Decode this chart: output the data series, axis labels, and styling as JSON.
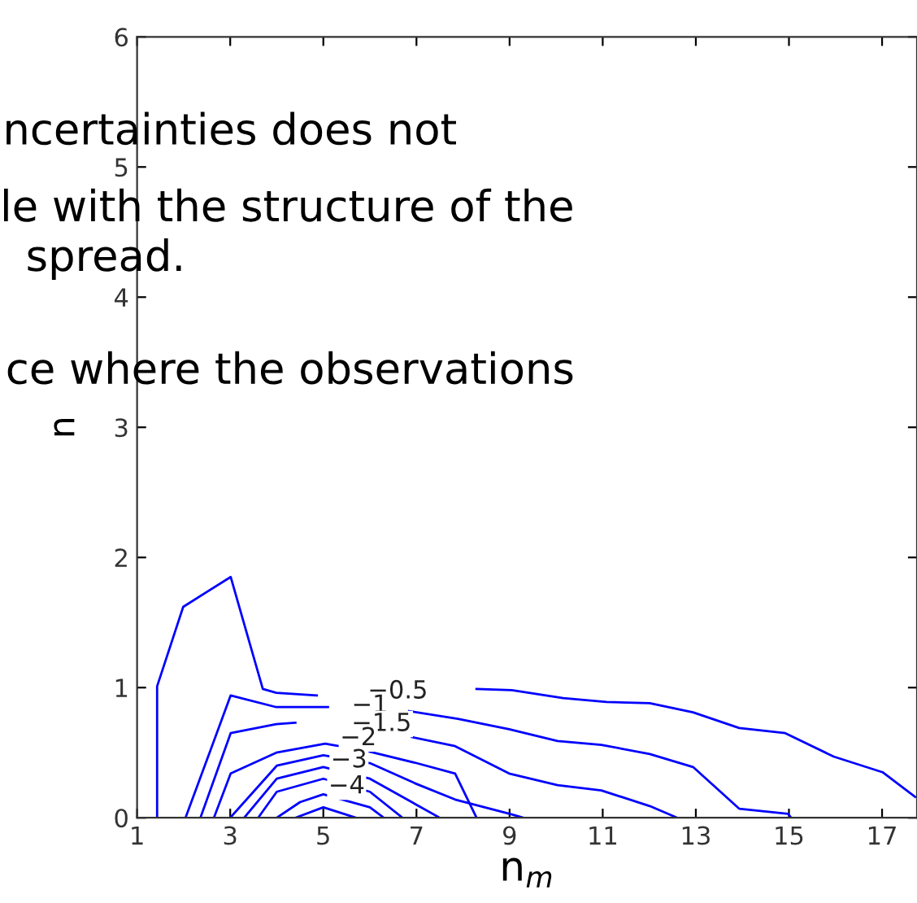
{
  "chart_data": {
    "type": "line",
    "xlabel": "n$_{m}$",
    "ylabel": "n",
    "xlim": [
      1,
      17.75
    ],
    "ylim": [
      0,
      6
    ],
    "xticks": [
      1,
      3,
      5,
      7,
      9,
      11,
      13,
      15,
      17
    ],
    "yticks": [
      0,
      1,
      2,
      3,
      4,
      5,
      6
    ],
    "grid": false,
    "marker": "none",
    "line_style": "solid",
    "series": [
      {
        "color": "#0000ff",
        "x": [
          1.43,
          1.43,
          1.99,
          3.01,
          3.7,
          3.99,
          4.86,
          null,
          8.29,
          9.05,
          10.15,
          11.08,
          12.01,
          12.94,
          13.93,
          14.92,
          15.96,
          17.01,
          17.71
        ],
        "values": [
          0,
          1.01,
          1.62,
          1.85,
          0.99,
          0.96,
          0.94,
          null,
          0.99,
          0.98,
          0.92,
          0.89,
          0.88,
          0.81,
          0.69,
          0.65,
          0.47,
          0.35,
          0.16
        ]
      },
      {
        "color": "#0000ff",
        "x": [
          2.04,
          3.01,
          3.99,
          5.1,
          null,
          6.84,
          7.89,
          8.99,
          10.03,
          10.97,
          12.01,
          12.94,
          13.93,
          14.98,
          15.05
        ],
        "values": [
          0,
          0.94,
          0.85,
          0.85,
          null,
          0.82,
          0.76,
          0.68,
          0.59,
          0.56,
          0.49,
          0.39,
          0.07,
          0.03,
          0
        ]
      },
      {
        "color": "#0000ff",
        "x": [
          2.36,
          3.01,
          3.99,
          4.4,
          null,
          6.9,
          7.83,
          8.99,
          10.03,
          10.97,
          12.01,
          12.6
        ],
        "values": [
          0,
          0.65,
          0.72,
          0.73,
          null,
          0.62,
          0.55,
          0.34,
          0.25,
          0.21,
          0.09,
          0
        ]
      },
      {
        "color": "#0000ff",
        "x": [
          2.65,
          3.01,
          3.99,
          5.04,
          5.97,
          7.0,
          7.83,
          8.29
        ],
        "values": [
          0,
          0.34,
          0.5,
          0.57,
          0.51,
          0.42,
          0.34,
          0
        ]
      },
      {
        "color": "#0000ff",
        "x": [
          3.0,
          4.0,
          5.0,
          6.0,
          7.0,
          7.83,
          9.0,
          9.3
        ],
        "values": [
          0,
          0.4,
          0.48,
          0.42,
          0.26,
          0.14,
          0.03,
          0
        ]
      },
      {
        "color": "#0000ff",
        "x": [
          3.3,
          4.0,
          5.0,
          6.0,
          7.0,
          7.5
        ],
        "values": [
          0,
          0.3,
          0.39,
          0.3,
          0.1,
          0
        ]
      },
      {
        "color": "#0000ff",
        "x": [
          3.6,
          4.0,
          5.0,
          6.0,
          6.7
        ],
        "values": [
          0,
          0.2,
          0.3,
          0.2,
          0
        ]
      },
      {
        "color": "#0000ff",
        "x": [
          4.0,
          4.5,
          5.0,
          6.0,
          6.3
        ],
        "values": [
          0,
          0.12,
          0.18,
          0.08,
          0
        ]
      },
      {
        "color": "#0000ff",
        "x": [
          4.4,
          5.0,
          5.7
        ],
        "values": [
          0,
          0.08,
          0
        ]
      }
    ],
    "annotations": [
      "−0.5",
      "−1",
      "−1.5",
      "−2",
      "−3",
      "−4",
      "ncertainties does not",
      "le with the structure of the",
      "spread.",
      "ce where the observations"
    ]
  }
}
